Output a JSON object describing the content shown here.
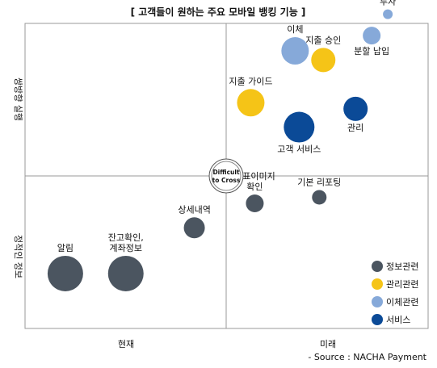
{
  "chart_data": {
    "type": "scatter",
    "title": "[ 고객들이 원하는 주요 모바일 뱅킹 기능 ]",
    "xlabel": "",
    "ylabel": "",
    "x_categories": [
      "현재",
      "미래"
    ],
    "y_categories": [
      "정적인 정보",
      "쌍방향 실행"
    ],
    "center_label": [
      "Difficult",
      "to Cross"
    ],
    "source": "- Source : NACHA Payment",
    "xlim": [
      0,
      100
    ],
    "ylim": [
      0,
      100
    ],
    "legend_position": "bottom-right",
    "categories": [
      {
        "key": "info",
        "name": "정보관련",
        "color": "#4b5560"
      },
      {
        "key": "mgmt",
        "name": "관리관련",
        "color": "#f5c417"
      },
      {
        "key": "xfer",
        "name": "이체관련",
        "color": "#86a9d9"
      },
      {
        "key": "svc",
        "name": "서비스",
        "color": "#0b4a97"
      }
    ],
    "points": [
      {
        "label": "알림",
        "category": "info",
        "x": 10,
        "y": 18,
        "size": 22,
        "label_pos": "above"
      },
      {
        "label": "잔고확인,\n계좌정보",
        "category": "info",
        "x": 25,
        "y": 18,
        "size": 22,
        "label_pos": "above"
      },
      {
        "label": "상세내역",
        "category": "info",
        "x": 42,
        "y": 33,
        "size": 13,
        "label_pos": "above"
      },
      {
        "label": "수표이미지\n확인",
        "category": "info",
        "x": 57,
        "y": 41,
        "size": 11,
        "label_pos": "above"
      },
      {
        "label": "기본 리포팅",
        "category": "info",
        "x": 73,
        "y": 43,
        "size": 9,
        "label_pos": "above"
      },
      {
        "label": "지출 가이드",
        "category": "mgmt",
        "x": 56,
        "y": 74,
        "size": 17,
        "label_pos": "above"
      },
      {
        "label": "지출 승인",
        "category": "mgmt",
        "x": 74,
        "y": 88,
        "size": 15,
        "label_pos": "above"
      },
      {
        "label": "이체",
        "category": "xfer",
        "x": 67,
        "y": 91,
        "size": 17,
        "label_pos": "above"
      },
      {
        "label": "분할 납입",
        "category": "xfer",
        "x": 86,
        "y": 96,
        "size": 11,
        "label_pos": "below"
      },
      {
        "label": "투자",
        "category": "xfer",
        "x": 90,
        "y": 103,
        "size": 6,
        "label_pos": "above"
      },
      {
        "label": "고객 서비스",
        "category": "svc",
        "x": 68,
        "y": 66,
        "size": 19,
        "label_pos": "below"
      },
      {
        "label": "관리",
        "category": "svc",
        "x": 82,
        "y": 72,
        "size": 15,
        "label_pos": "below"
      }
    ]
  }
}
